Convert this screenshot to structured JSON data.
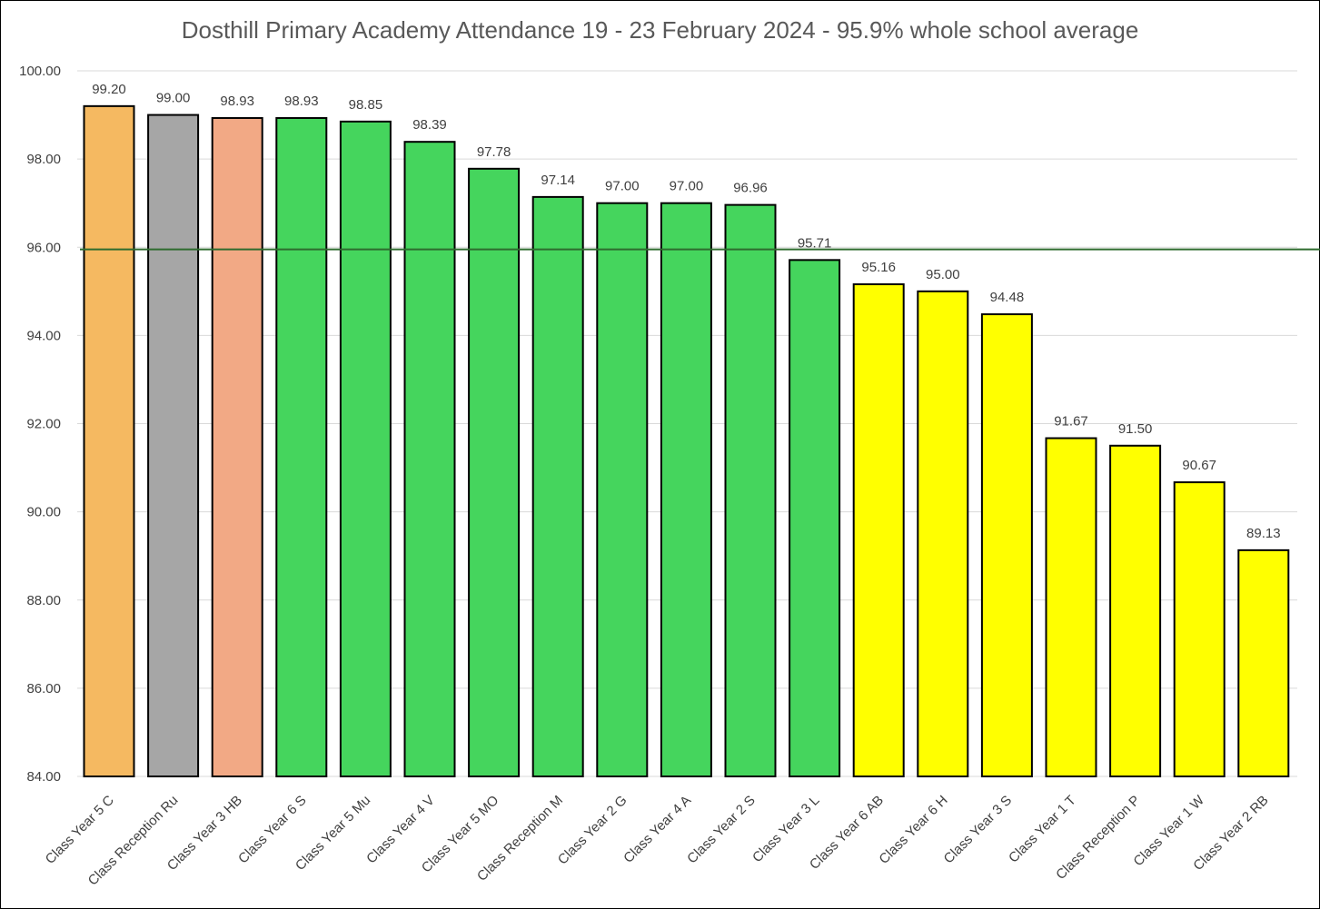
{
  "chart_data": {
    "type": "bar",
    "title": "Dosthill Primary Academy Attendance 19 - 23 February 2024 - 95.9% whole school average",
    "xlabel": "",
    "ylabel": "",
    "ylim": [
      84,
      100
    ],
    "yticks": [
      "84.00",
      "86.00",
      "88.00",
      "90.00",
      "92.00",
      "94.00",
      "96.00",
      "98.00",
      "100.00"
    ],
    "grid": true,
    "legend": "none",
    "reference_line": {
      "value": 95.95,
      "color": "#2e6b2e"
    },
    "categories": [
      "Class Year 5 C",
      "Class Reception Ru",
      "Class Year 3 HB",
      "Class Year 6 S",
      "Class Year 5 Mu",
      "Class Year 4 V",
      "Class Year 5 MO",
      "Class Reception M",
      "Class Year 2 G",
      "Class Year 4 A",
      "Class Year 2 S",
      "Class Year 3 L",
      "Class Year 6 AB",
      "Class Year 6 H",
      "Class Year 3 S",
      "Class Year 1 T",
      "Class Reception P",
      "Class Year 1 W",
      "Class Year 2 RB"
    ],
    "values": [
      99.2,
      99.0,
      98.93,
      98.93,
      98.85,
      98.39,
      97.78,
      97.14,
      97.0,
      97.0,
      96.96,
      95.71,
      95.16,
      95.0,
      94.48,
      91.67,
      91.5,
      90.67,
      89.13
    ],
    "value_labels": [
      "99.20",
      "99.00",
      "98.93",
      "98.93",
      "98.85",
      "98.39",
      "97.78",
      "97.14",
      "97.00",
      "97.00",
      "96.96",
      "95.71",
      "95.16",
      "95.00",
      "94.48",
      "91.67",
      "91.50",
      "90.67",
      "89.13"
    ],
    "colors": [
      "#f5b961",
      "#a6a6a6",
      "#f2a985",
      "#45d55d",
      "#45d55d",
      "#45d55d",
      "#45d55d",
      "#45d55d",
      "#45d55d",
      "#45d55d",
      "#45d55d",
      "#45d55d",
      "#ffff00",
      "#ffff00",
      "#ffff00",
      "#ffff00",
      "#ffff00",
      "#ffff00",
      "#ffff00"
    ]
  }
}
